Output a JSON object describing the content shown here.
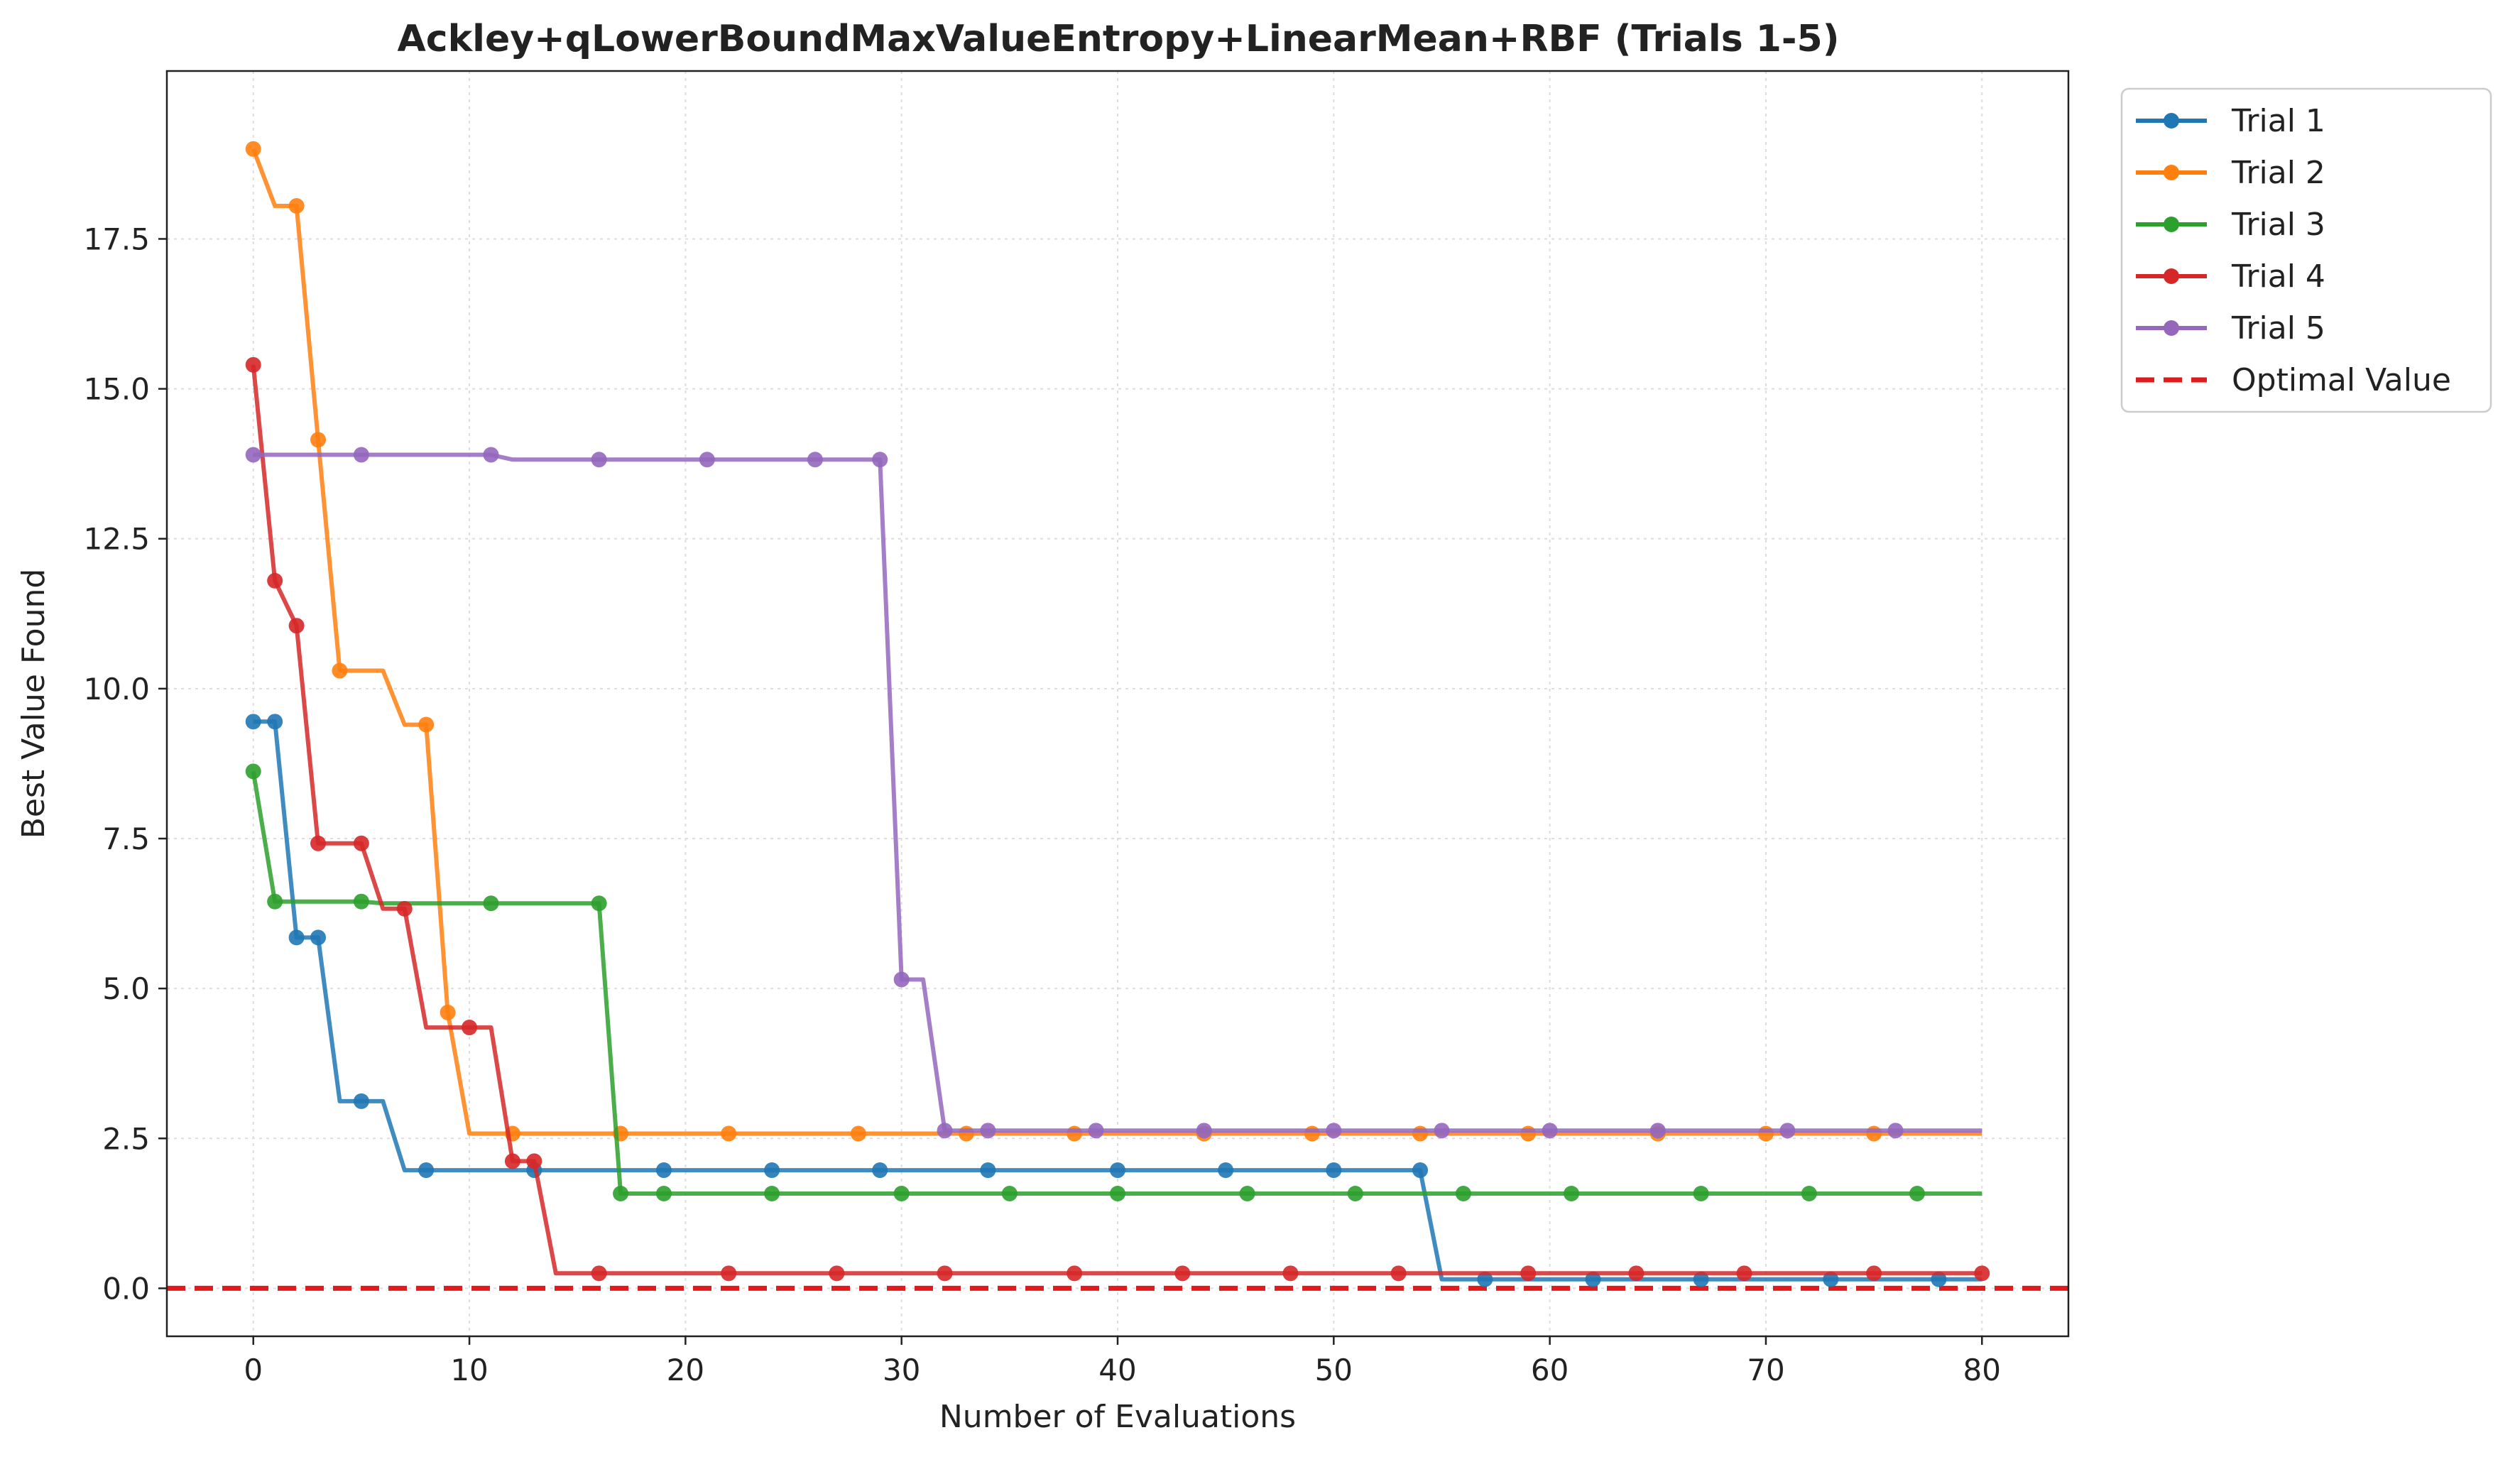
{
  "chart_data": {
    "type": "line",
    "title": "Ackley+qLowerBoundMaxValueEntropy+LinearMean+RBF (Trials 1-5)",
    "xlabel": "Number of Evaluations",
    "ylabel": "Best Value Found",
    "xlim": [
      -4,
      84
    ],
    "ylim": [
      -0.8,
      20.3
    ],
    "xticks": [
      0,
      10,
      20,
      30,
      40,
      50,
      60,
      70,
      80
    ],
    "yticks": [
      0.0,
      2.5,
      5.0,
      7.5,
      10.0,
      12.5,
      15.0,
      17.5
    ],
    "xtick_labels": [
      "0",
      "10",
      "20",
      "30",
      "40",
      "50",
      "60",
      "70",
      "80"
    ],
    "ytick_labels": [
      "0.0",
      "2.5",
      "5.0",
      "7.5",
      "10.0",
      "12.5",
      "15.0",
      "17.5"
    ],
    "grid": true,
    "legend_position": "outside-top-right",
    "series": [
      {
        "name": "Trial 1",
        "color": "#1f77b4",
        "steps": [
          [
            0,
            9.45
          ],
          [
            2,
            5.85
          ],
          [
            4,
            3.12
          ],
          [
            7,
            1.97
          ],
          [
            55,
            0.15
          ]
        ],
        "markers": [
          0,
          1,
          2,
          3,
          5,
          8,
          13,
          19,
          24,
          29,
          34,
          40,
          45,
          50,
          54,
          57,
          62,
          67,
          73,
          78
        ],
        "last_x": 80
      },
      {
        "name": "Trial 2",
        "color": "#ff7f0e",
        "steps": [
          [
            0,
            19.0
          ],
          [
            1,
            18.05
          ],
          [
            3,
            14.15
          ],
          [
            4,
            10.3
          ],
          [
            7,
            9.4
          ],
          [
            9,
            4.6
          ],
          [
            10,
            2.58
          ]
        ],
        "markers": [
          0,
          2,
          3,
          4,
          8,
          9,
          12,
          17,
          22,
          28,
          33,
          38,
          44,
          49,
          54,
          59,
          65,
          70,
          75
        ],
        "last_x": 80
      },
      {
        "name": "Trial 3",
        "color": "#2ca02c",
        "steps": [
          [
            0,
            8.62
          ],
          [
            1,
            6.45
          ],
          [
            6,
            6.42
          ],
          [
            17,
            1.58
          ]
        ],
        "markers": [
          0,
          1,
          5,
          11,
          16,
          17,
          19,
          24,
          30,
          35,
          40,
          46,
          51,
          56,
          61,
          67,
          72,
          77
        ],
        "last_x": 80
      },
      {
        "name": "Trial 4",
        "color": "#d62728",
        "steps": [
          [
            0,
            15.4
          ],
          [
            1,
            11.8
          ],
          [
            2,
            11.05
          ],
          [
            3,
            7.42
          ],
          [
            6,
            6.33
          ],
          [
            8,
            4.35
          ],
          [
            12,
            2.12
          ],
          [
            14,
            0.25
          ]
        ],
        "markers": [
          0,
          1,
          2,
          3,
          5,
          7,
          10,
          12,
          13,
          16,
          22,
          27,
          32,
          38,
          43,
          48,
          53,
          59,
          64,
          69,
          75,
          80
        ],
        "last_x": 80
      },
      {
        "name": "Trial 5",
        "color": "#9467bd",
        "steps": [
          [
            0,
            13.9
          ],
          [
            12,
            13.82
          ],
          [
            30,
            5.15
          ],
          [
            32,
            2.63
          ]
        ],
        "markers": [
          0,
          5,
          11,
          16,
          21,
          26,
          29,
          30,
          32,
          34,
          39,
          44,
          50,
          55,
          60,
          65,
          71,
          76
        ],
        "last_x": 80
      }
    ],
    "reference_line": {
      "name": "Optimal Value",
      "y": 0.0,
      "color": "#e31a1c",
      "style": "dashed"
    }
  }
}
